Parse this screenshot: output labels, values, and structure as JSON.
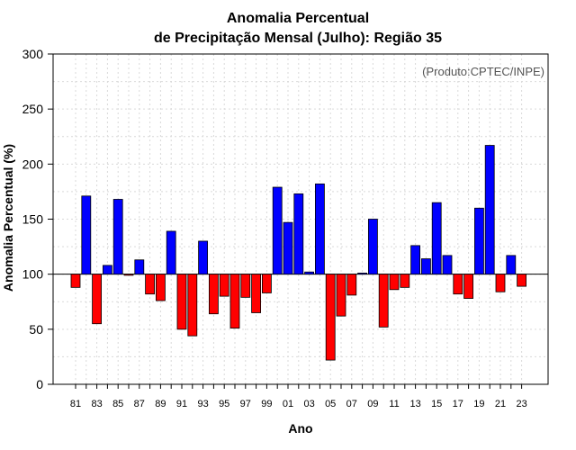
{
  "chart_data": {
    "type": "bar",
    "title_line1": "Anomalia Percentual",
    "title_line2": "de Precipitação Mensal (Julho): Região 35",
    "xlabel": "Ano",
    "ylabel": "Anomalia Percentual (%)",
    "source": "(Produto:CPTEC/INPE)",
    "ylim": [
      0,
      300
    ],
    "baseline": 100,
    "yticks": [
      0,
      50,
      100,
      150,
      200,
      250,
      300
    ],
    "xtick_labels": [
      "81",
      "83",
      "85",
      "87",
      "89",
      "91",
      "93",
      "95",
      "97",
      "99",
      "01",
      "03",
      "05",
      "07",
      "09",
      "11",
      "13",
      "15",
      "17",
      "19",
      "21",
      "23"
    ],
    "colors": {
      "above": "#0000ff",
      "below": "#ff0000",
      "outline": "#000000",
      "grid": "#d9d9d9"
    },
    "categories": [
      "1981",
      "1982",
      "1983",
      "1984",
      "1985",
      "1986",
      "1987",
      "1988",
      "1989",
      "1990",
      "1991",
      "1992",
      "1993",
      "1994",
      "1995",
      "1996",
      "1997",
      "1998",
      "1999",
      "2000",
      "2001",
      "2002",
      "2003",
      "2004",
      "2005",
      "2006",
      "2007",
      "2008",
      "2009",
      "2010",
      "2011",
      "2012",
      "2013",
      "2014",
      "2015",
      "2016",
      "2017",
      "2018",
      "2019",
      "2020",
      "2021",
      "2022",
      "2023"
    ],
    "values": [
      88,
      171,
      55,
      108,
      168,
      99,
      113,
      82,
      76,
      139,
      50,
      44,
      130,
      64,
      80,
      51,
      79,
      65,
      83,
      179,
      147,
      173,
      102,
      182,
      22,
      62,
      81,
      101,
      150,
      52,
      86,
      88,
      126,
      114,
      165,
      117,
      82,
      78,
      160,
      217,
      84,
      117,
      89
    ]
  }
}
